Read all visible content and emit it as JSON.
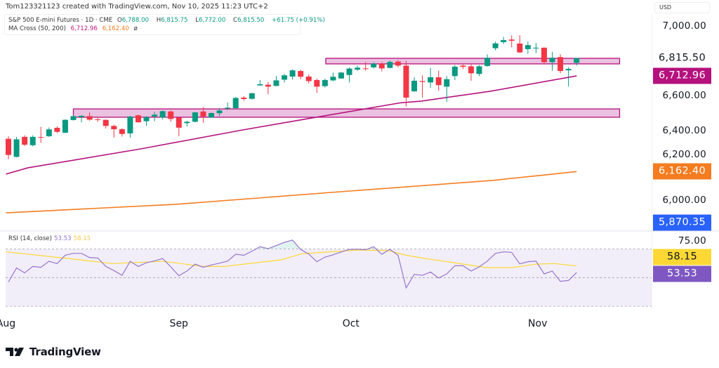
{
  "watermark": "Tom123321123 created with TradingView.com, Nov 10, 2025 11:23 UTC+2",
  "legend": {
    "symbol": "S&P 500 E-mini Futures · 1D · CME",
    "open_label": "O",
    "open": "6,788.00",
    "high_label": "H",
    "high": "6,815.75",
    "low_label": "L",
    "low": "6,772.00",
    "close_label": "C",
    "close": "6,815.50",
    "change": "+61.75 (+0.91%)",
    "ma_title": "MA Cross (50, 200)",
    "ma_fast": "6,712.96",
    "ma_slow": "6,162.40",
    "ma_icon": "ø"
  },
  "currency": "USD",
  "price_axis": {
    "labels": [
      {
        "value": 7000,
        "text": "7,000.00"
      },
      {
        "value": 6600,
        "text": "6,600.00"
      },
      {
        "value": 6400,
        "text": "6,400.00"
      },
      {
        "value": 6200,
        "text": "6,200.00"
      },
      {
        "value": 6000,
        "text": "6,000.00"
      }
    ],
    "tags": [
      {
        "value": 6815.5,
        "text": "6,815.50",
        "bg": "#ffffff",
        "fg": "#131722"
      },
      {
        "value": 6712.96,
        "text": "6,712.96",
        "bg": "#b5117d",
        "fg": "#ffffff"
      },
      {
        "value": 6162.4,
        "text": "6,162.40",
        "bg": "#f57c1f",
        "fg": "#ffffff"
      },
      {
        "value": 5870.35,
        "text": "5,870.35",
        "bg": "#2962ff",
        "fg": "#ffffff"
      }
    ]
  },
  "rsi": {
    "title": "RSI (14, close)",
    "value": "53.53",
    "ma_value": "58.15",
    "axis_label": "75.00",
    "tags": [
      {
        "value": 58.15,
        "text": "58.15",
        "bg": "#fdd835",
        "fg": "#131722"
      },
      {
        "value": 53.53,
        "text": "53.53",
        "bg": "#7e57c2",
        "fg": "#ffffff"
      }
    ]
  },
  "time_axis": [
    {
      "bar": -0.3,
      "text": "Aug"
    },
    {
      "bar": 21,
      "text": "Sep"
    },
    {
      "bar": 42.2,
      "text": "Oct"
    },
    {
      "bar": 65.2,
      "text": "Nov"
    }
  ],
  "brand": "TradingView",
  "colors": {
    "up": "#089981",
    "down": "#f23645",
    "ma50": "#b5117d",
    "ma200": "#f57c1f",
    "rsi": "#9575cd",
    "rsi_ma": "#fdd835",
    "zone_fill": "#e9bede",
    "zone_border": "#b5117d"
  },
  "chart_data": [
    {
      "type": "candlestick",
      "ylim": [
        5830,
        7070
      ],
      "candles_ohlc": [
        [
          6351,
          6366,
          6234,
          6258
        ],
        [
          6247,
          6362,
          6244,
          6348
        ],
        [
          6362,
          6371,
          6309,
          6317
        ],
        [
          6314,
          6371,
          6308,
          6362
        ],
        [
          6361,
          6420,
          6328,
          6358
        ],
        [
          6366,
          6416,
          6362,
          6405
        ],
        [
          6414,
          6422,
          6384,
          6391
        ],
        [
          6386,
          6463,
          6384,
          6460
        ],
        [
          6459,
          6487,
          6456,
          6481
        ],
        [
          6476,
          6487,
          6446,
          6483
        ],
        [
          6481,
          6503,
          6455,
          6461
        ],
        [
          6463,
          6476,
          6449,
          6460
        ],
        [
          6460,
          6463,
          6411,
          6425
        ],
        [
          6425,
          6432,
          6358,
          6406
        ],
        [
          6406,
          6413,
          6364,
          6379
        ],
        [
          6382,
          6483,
          6358,
          6479
        ],
        [
          6486,
          6490,
          6444,
          6446
        ],
        [
          6452,
          6481,
          6425,
          6476
        ],
        [
          6479,
          6506,
          6452,
          6490
        ],
        [
          6473,
          6514,
          6463,
          6510
        ],
        [
          6508,
          6514,
          6449,
          6465
        ],
        [
          6473,
          6476,
          6366,
          6415
        ],
        [
          6441,
          6455,
          6422,
          6449
        ],
        [
          6449,
          6506,
          6446,
          6503
        ],
        [
          6508,
          6533,
          6444,
          6479
        ],
        [
          6473,
          6503,
          6471,
          6499
        ],
        [
          6498,
          6527,
          6481,
          6514
        ],
        [
          6525,
          6560,
          6516,
          6530
        ],
        [
          6527,
          6592,
          6524,
          6586
        ],
        [
          6588,
          6597,
          6570,
          6580
        ],
        [
          6581,
          6616,
          6577,
          6613
        ],
        [
          6658,
          6689,
          6657,
          6665
        ],
        [
          6662,
          6678,
          6607,
          6651
        ],
        [
          6655,
          6712,
          6654,
          6687
        ],
        [
          6691,
          6725,
          6675,
          6716
        ],
        [
          6709,
          6751,
          6691,
          6745
        ],
        [
          6741,
          6748,
          6694,
          6708
        ],
        [
          6709,
          6721,
          6670,
          6683
        ],
        [
          6689,
          6697,
          6616,
          6651
        ],
        [
          6654,
          6697,
          6646,
          6689
        ],
        [
          6687,
          6732,
          6682,
          6708
        ],
        [
          6698,
          6736,
          6696,
          6732
        ],
        [
          6718,
          6762,
          6675,
          6755
        ],
        [
          6749,
          6772,
          6741,
          6760
        ],
        [
          6756,
          6793,
          6743,
          6754
        ],
        [
          6762,
          6793,
          6756,
          6783
        ],
        [
          6783,
          6793,
          6739,
          6756
        ],
        [
          6759,
          6802,
          6756,
          6793
        ],
        [
          6795,
          6806,
          6762,
          6772
        ],
        [
          6772,
          6799,
          6537,
          6588
        ],
        [
          6624,
          6705,
          6621,
          6685
        ],
        [
          6683,
          6716,
          6588,
          6678
        ],
        [
          6675,
          6759,
          6644,
          6705
        ],
        [
          6705,
          6743,
          6627,
          6660
        ],
        [
          6651,
          6712,
          6563,
          6694
        ],
        [
          6712,
          6775,
          6689,
          6766
        ],
        [
          6772,
          6779,
          6752,
          6765
        ],
        [
          6768,
          6779,
          6685,
          6728
        ],
        [
          6724,
          6775,
          6712,
          6768
        ],
        [
          6770,
          6837,
          6765,
          6817
        ],
        [
          6872,
          6910,
          6860,
          6900
        ],
        [
          6907,
          6937,
          6896,
          6919
        ],
        [
          6922,
          6945,
          6877,
          6915
        ],
        [
          6899,
          6947,
          6845,
          6848
        ],
        [
          6867,
          6911,
          6840,
          6890
        ],
        [
          6871,
          6902,
          6844,
          6875
        ],
        [
          6875,
          6877,
          6783,
          6792
        ],
        [
          6792,
          6850,
          6743,
          6817
        ],
        [
          6821,
          6837,
          6728,
          6741
        ],
        [
          6745,
          6763,
          6651,
          6753
        ],
        [
          6788,
          6815.75,
          6772,
          6815.5
        ]
      ],
      "ma50": [
        [
          -0.3,
          6148
        ],
        [
          2.4,
          6184
        ],
        [
          16.3,
          6293
        ],
        [
          28.4,
          6398
        ],
        [
          36.4,
          6463
        ],
        [
          48.3,
          6558
        ],
        [
          50.9,
          6568
        ],
        [
          59.3,
          6624
        ],
        [
          70,
          6712.96
        ]
      ],
      "ma200": [
        [
          -0.3,
          5925
        ],
        [
          20.6,
          5974
        ],
        [
          42.2,
          6051
        ],
        [
          59.5,
          6111
        ],
        [
          70,
          6162.4
        ]
      ],
      "zones": [
        {
          "start_bar": 39.1,
          "end_bar": 75.3,
          "top": 6814,
          "bottom": 6782
        },
        {
          "start_bar": 8,
          "end_bar": 75.3,
          "top": 6523,
          "bottom": 6475
        }
      ]
    },
    {
      "type": "line",
      "ylim": [
        29,
        81
      ],
      "bands": {
        "upper": 70,
        "middle": 50,
        "lower": 30
      },
      "rsi": [
        46.9,
        56.8,
        53.3,
        57.8,
        57.2,
        61.4,
        59.8,
        65.6,
        66.9,
        66.9,
        64.0,
        63.7,
        57.8,
        54.9,
        51.6,
        61.4,
        57.8,
        60.4,
        61.7,
        63.3,
        57.5,
        51.3,
        54.6,
        59.4,
        57.2,
        58.8,
        60.1,
        61.5,
        66.3,
        65.6,
        68.4,
        71.6,
        70.2,
        72.4,
        74.6,
        76.2,
        69.7,
        66.4,
        61.1,
        64.3,
        65.9,
        67.9,
        69.7,
        69.8,
        69.5,
        71.5,
        66.3,
        69.7,
        65.6,
        42.8,
        52.3,
        51.6,
        53.9,
        49.7,
        52.6,
        58.3,
        58.3,
        54.6,
        57.5,
        61.5,
        66.9,
        68.0,
        67.6,
        59.6,
        61.1,
        61.5,
        52.6,
        54.6,
        47.4,
        48.0,
        53.53
      ],
      "rsi_ma": [
        [
          -0.3,
          68.0
        ],
        [
          7.6,
          63.2
        ],
        [
          12.8,
          59.8
        ],
        [
          19.1,
          61.4
        ],
        [
          24,
          57.8
        ],
        [
          26.6,
          57.8
        ],
        [
          33.6,
          62.4
        ],
        [
          36.2,
          66.7
        ],
        [
          43,
          69.2
        ],
        [
          46.8,
          68.9
        ],
        [
          49,
          65.6
        ],
        [
          51.5,
          63.2
        ],
        [
          55.5,
          59.9
        ],
        [
          58.9,
          57.0
        ],
        [
          62.1,
          57.0
        ],
        [
          65,
          59.4
        ],
        [
          67.3,
          59.8
        ],
        [
          70,
          58.15
        ]
      ]
    }
  ]
}
